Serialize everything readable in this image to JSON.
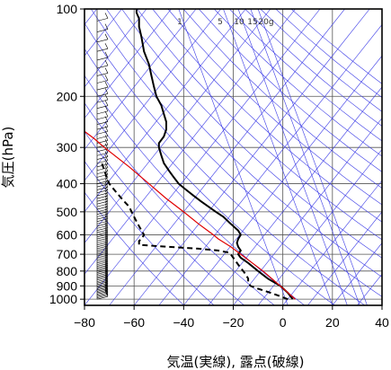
{
  "chart_data": {
    "type": "line",
    "title": "",
    "xlabel": "気温(実線), 露点(破線)",
    "ylabel": "気圧(hPa)",
    "xlim": [
      -80,
      40
    ],
    "ylim": [
      1050,
      100
    ],
    "y_scale": "log",
    "x_ticks": [
      "−80",
      "−60",
      "−40",
      "−20",
      "0",
      "20",
      "40"
    ],
    "y_ticks": [
      "100",
      "200",
      "300",
      "400",
      "500",
      "600",
      "700",
      "800",
      "900",
      "1000"
    ],
    "mixing_ratio_labels": [
      "1",
      "5",
      "10",
      "15",
      "20g"
    ],
    "grid": true,
    "colors": {
      "temperature": "#000000",
      "dewpoint": "#000000",
      "parcel": "#e00000",
      "adiabats": "#3a3ae6",
      "grid": "#555555",
      "barbs": "#000000"
    },
    "series": [
      {
        "name": "気温",
        "style": "solid",
        "pressure": [
          1000,
          950,
          900,
          850,
          800,
          750,
          720,
          700,
          680,
          660,
          640,
          620,
          600,
          580,
          560,
          540,
          520,
          500,
          480,
          460,
          440,
          420,
          400,
          380,
          360,
          340,
          320,
          300,
          290,
          275,
          260,
          245,
          230,
          215,
          200,
          185,
          170,
          155,
          140,
          125,
          115,
          108,
          103,
          100
        ],
        "temperature": [
          4,
          2,
          -1,
          -6,
          -10,
          -14,
          -17,
          -18,
          -17,
          -18,
          -18.5,
          -18,
          -17,
          -18,
          -20,
          -22,
          -24,
          -27,
          -30,
          -33,
          -36,
          -39,
          -42,
          -44,
          -46,
          -48,
          -49,
          -50,
          -50,
          -48,
          -47,
          -47,
          -48,
          -49,
          -51,
          -52,
          -53,
          -54,
          -56,
          -57,
          -58,
          -58,
          -59,
          -59
        ]
      },
      {
        "name": "露点",
        "style": "dashed",
        "pressure": [
          1000,
          970,
          950,
          920,
          900,
          880,
          850,
          820,
          800,
          780,
          760,
          740,
          720,
          700,
          690,
          685,
          680,
          670,
          660,
          650,
          640,
          630,
          620,
          600,
          580,
          560,
          540,
          520,
          500,
          480,
          460,
          440,
          420,
          400,
          380,
          360,
          340
        ],
        "temperature": [
          2,
          -2,
          -5,
          -10,
          -13,
          -14,
          -14,
          -15,
          -16,
          -17,
          -18,
          -19,
          -20,
          -21,
          -22,
          -24,
          -26,
          -34,
          -46,
          -58,
          -58,
          -58,
          -57,
          -56,
          -57,
          -58,
          -59,
          -60,
          -61,
          -62,
          -64,
          -66,
          -68,
          -70,
          -71,
          -72,
          -73
        ]
      },
      {
        "name": "",
        "style": "solid",
        "pressure": [
          1000,
          900,
          800,
          700,
          660,
          620,
          600,
          550,
          500,
          450,
          400,
          350,
          300,
          280,
          260
        ],
        "temperature": [
          5,
          -1,
          -8,
          -17,
          -21,
          -26,
          -28,
          -34,
          -40,
          -47,
          -54,
          -62,
          -72,
          -76,
          -81
        ]
      }
    ]
  }
}
